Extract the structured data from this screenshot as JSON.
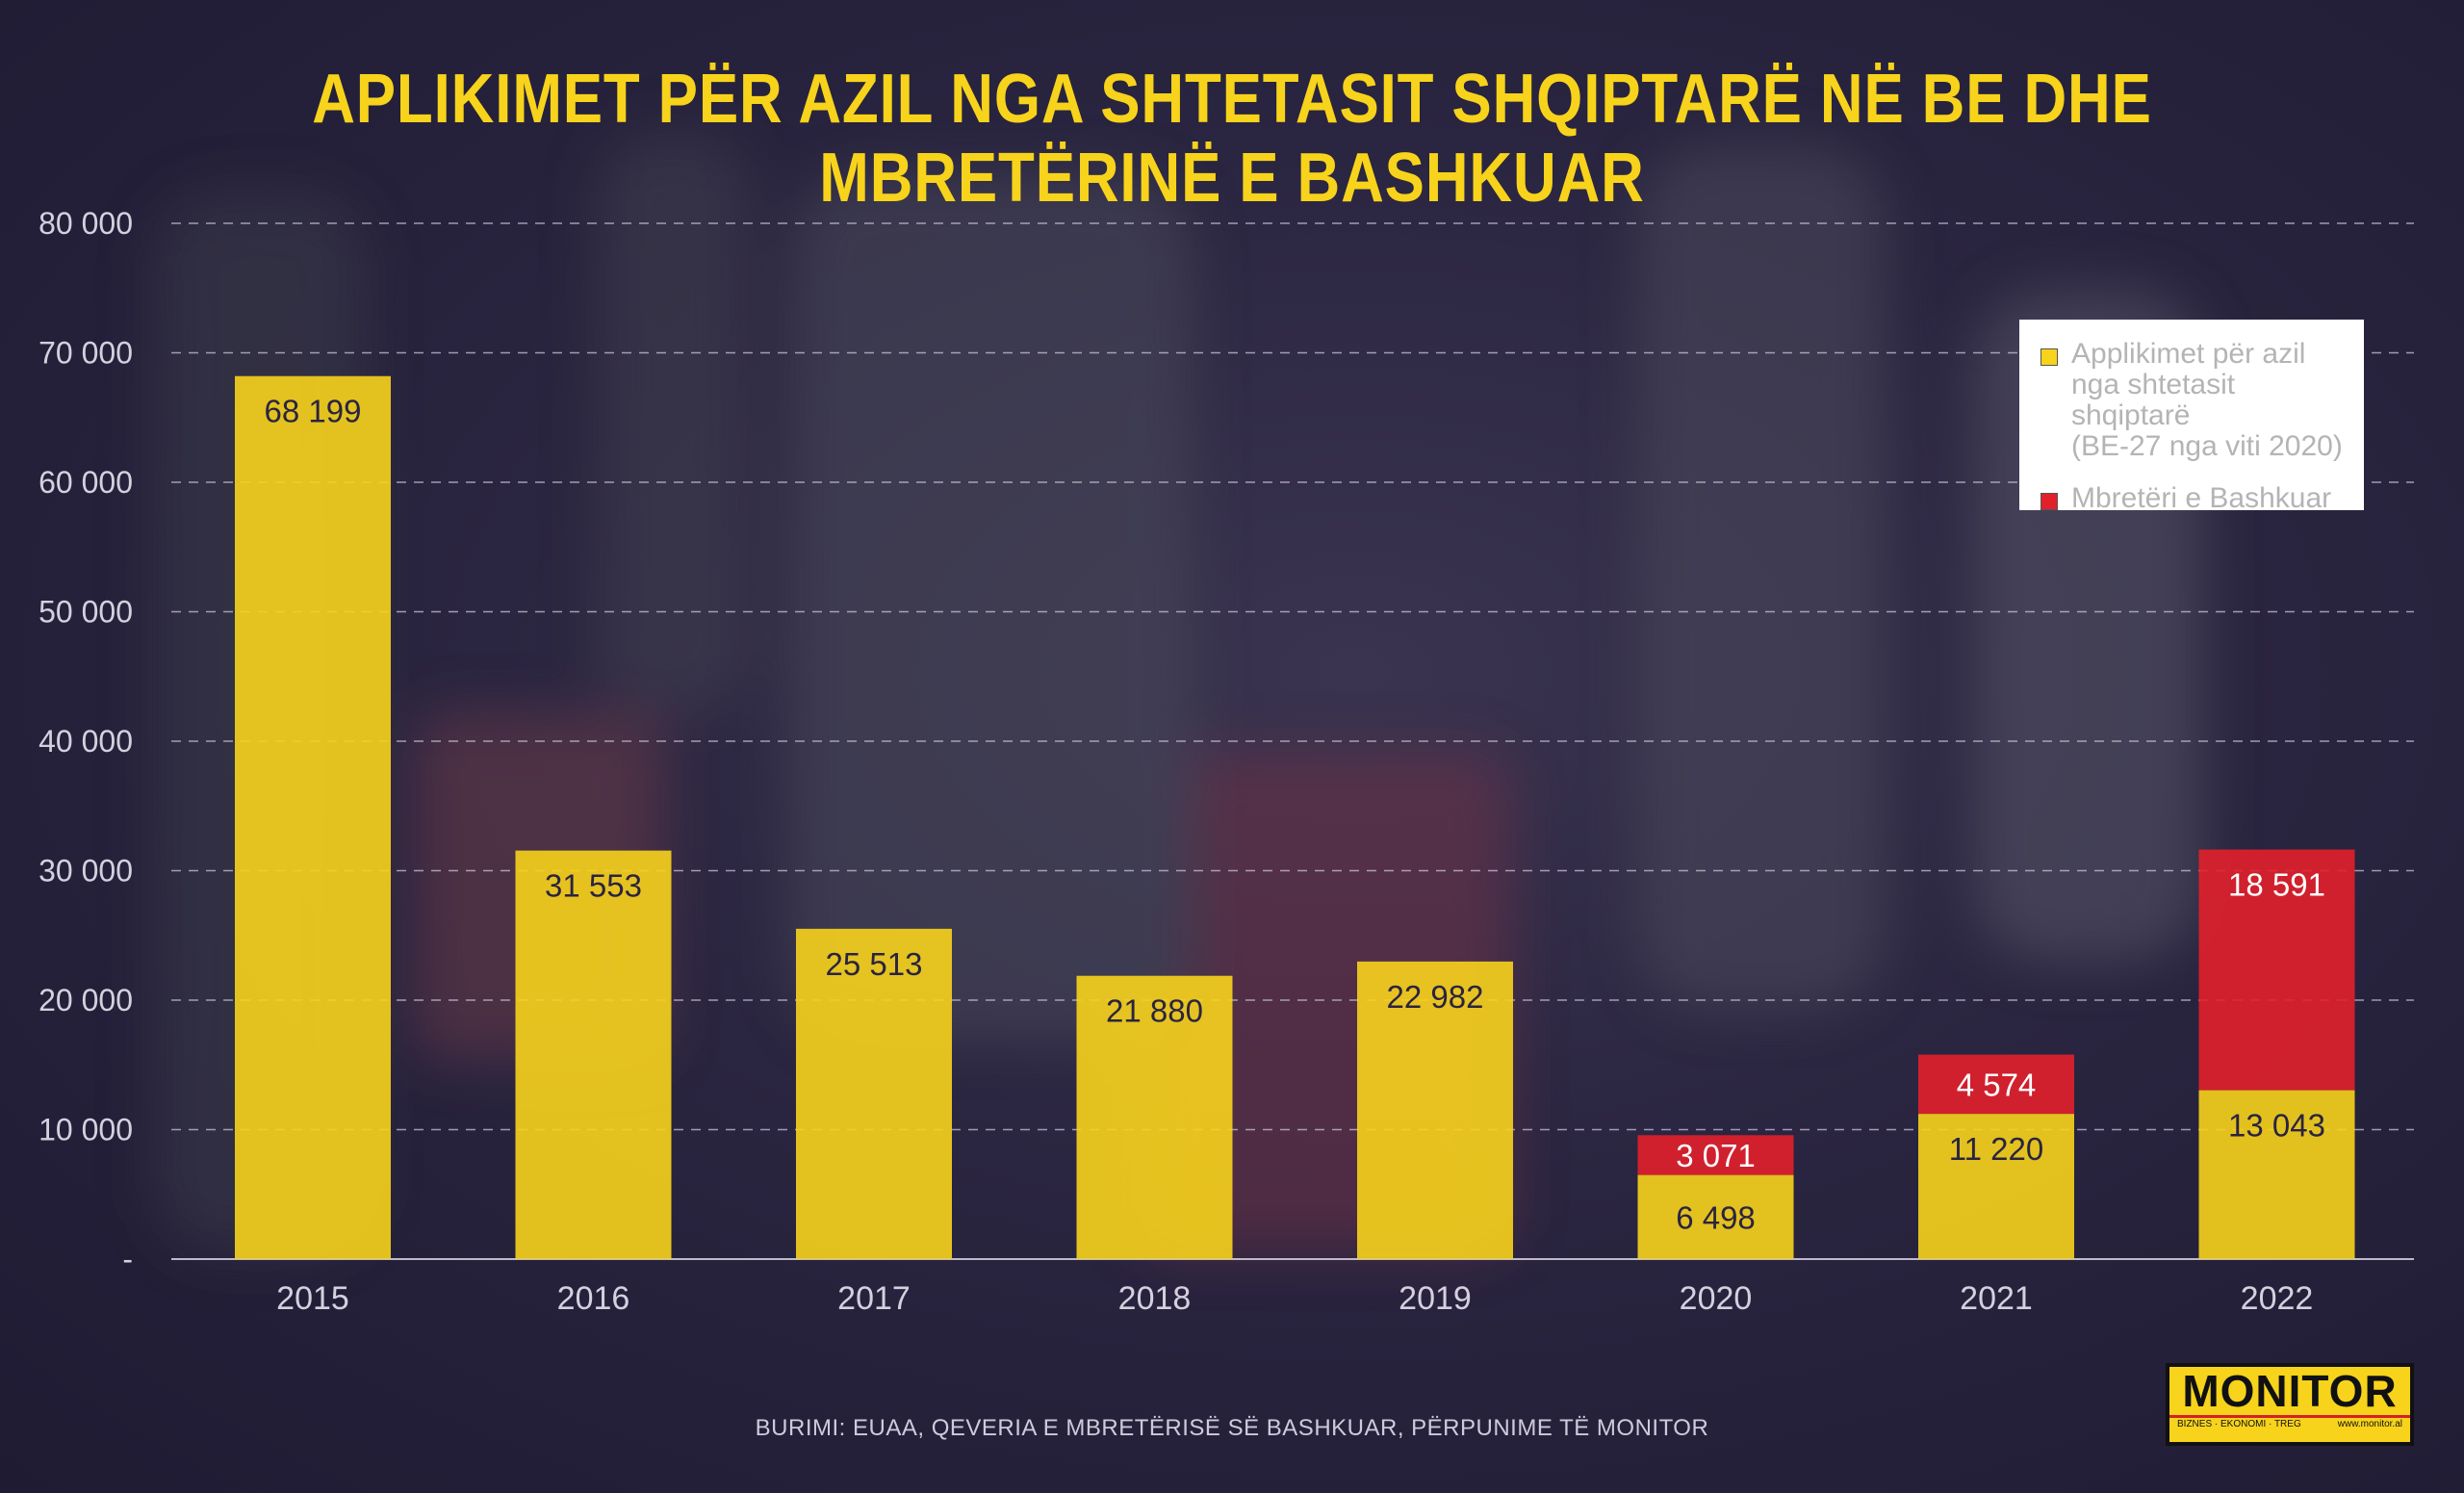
{
  "title": "APLIKIMET PËR AZIL NGA SHTETASIT SHQIPTARË NË BE DHE MBRETËRINË E BASHKUAR",
  "source": "BURIMI: EUAA, QEVERIA E MBRETËRISË SË BASHKUAR, PËRPUNIME TË MONITOR",
  "logo": {
    "name": "MONITOR",
    "tagline": "BIZNES · EKONOMI · TREG",
    "url": "www.monitor.al"
  },
  "colors": {
    "yellow": "#f7d31c",
    "red": "#e2202c",
    "grid": "#c9c4d6",
    "text": "#d4d0de"
  },
  "legend": {
    "items": [
      {
        "label": "Applikimet për azil\nnga shtetasit shqiptarë\n(BE-27 nga viti 2020)",
        "color": "#f7d31c"
      },
      {
        "label": "Mbretëri e Bashkuar",
        "color": "#e2202c"
      }
    ]
  },
  "chart_data": {
    "type": "bar",
    "stacked": true,
    "title": "APLIKIMET PËR AZIL NGA SHTETASIT SHQIPTARË NË BE DHE MBRETËRINË E BASHKUAR",
    "categories": [
      "2015",
      "2016",
      "2017",
      "2018",
      "2019",
      "2020",
      "2021",
      "2022"
    ],
    "series": [
      {
        "name": "Applikimet për azil nga shtetasit shqiptarë (BE-27 nga viti 2020)",
        "color": "#f7d31c",
        "values": [
          68199,
          31553,
          25513,
          21880,
          22982,
          6498,
          11220,
          13043
        ],
        "labels": [
          "68 199",
          "31 553",
          "25 513",
          "21 880",
          "22 982",
          "6 498",
          "11 220",
          "13 043"
        ]
      },
      {
        "name": "Mbretëri e Bashkuar",
        "color": "#e2202c",
        "values": [
          null,
          null,
          null,
          null,
          null,
          3071,
          4574,
          18591
        ],
        "labels": [
          null,
          null,
          null,
          null,
          null,
          "3 071",
          "4 574",
          "18 591"
        ]
      }
    ],
    "yticks": [
      0,
      10000,
      20000,
      30000,
      40000,
      50000,
      60000,
      70000,
      80000
    ],
    "ytick_labels": [
      "-",
      "10 000",
      "20 000",
      "30 000",
      "40 000",
      "50 000",
      "60 000",
      "70 000",
      "80 000"
    ],
    "ylim": [
      0,
      80000
    ],
    "grid": true,
    "legend_position": "top-right",
    "xlabel": "",
    "ylabel": ""
  }
}
